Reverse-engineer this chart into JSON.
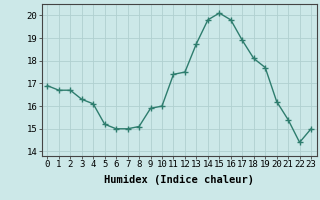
{
  "x": [
    0,
    1,
    2,
    3,
    4,
    5,
    6,
    7,
    8,
    9,
    10,
    11,
    12,
    13,
    14,
    15,
    16,
    17,
    18,
    19,
    20,
    21,
    22,
    23
  ],
  "y": [
    16.9,
    16.7,
    16.7,
    16.3,
    16.1,
    15.2,
    15.0,
    15.0,
    15.1,
    15.9,
    16.0,
    17.4,
    17.5,
    18.75,
    19.8,
    20.1,
    19.8,
    18.9,
    18.1,
    17.7,
    16.2,
    15.4,
    14.4,
    15.0
  ],
  "line_color": "#2e7d6e",
  "bg_color": "#cce8e8",
  "grid_color": "#b0d0d0",
  "xlabel": "Humidex (Indice chaleur)",
  "ylim": [
    13.8,
    20.5
  ],
  "xlim": [
    -0.5,
    23.5
  ],
  "yticks": [
    14,
    15,
    16,
    17,
    18,
    19,
    20
  ],
  "xticks": [
    0,
    1,
    2,
    3,
    4,
    5,
    6,
    7,
    8,
    9,
    10,
    11,
    12,
    13,
    14,
    15,
    16,
    17,
    18,
    19,
    20,
    21,
    22,
    23
  ],
  "xtick_labels": [
    "0",
    "1",
    "2",
    "3",
    "4",
    "5",
    "6",
    "7",
    "8",
    "9",
    "10",
    "11",
    "12",
    "13",
    "14",
    "15",
    "16",
    "17",
    "18",
    "19",
    "20",
    "21",
    "22",
    "23"
  ],
  "marker": "D",
  "markersize": 2.5,
  "linewidth": 1.0,
  "xlabel_fontsize": 7.5,
  "tick_fontsize": 6.5
}
